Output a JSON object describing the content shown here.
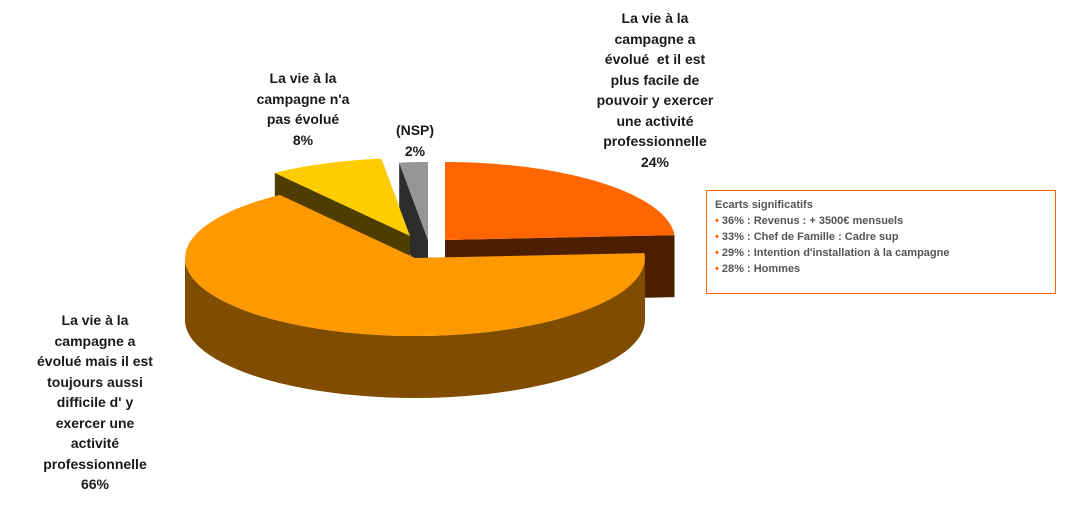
{
  "chart_data": {
    "type": "pie3d",
    "categories": [
      "La vie à la\ncampagne a\névolué  et il est\nplus facile de\npouvoir y exercer\nune activité\nprofessionnelle",
      "La vie à la\ncampagne a\névolué mais il est\ntoujours aussi\ndifficile d' y\nexercer une\nactivité\nprofessionnelle",
      "La vie à la\ncampagne n'a\npas évolué",
      "(NSP)"
    ],
    "values": [
      24,
      66,
      8,
      2
    ],
    "value_labels": [
      "24%",
      "66%",
      "8%",
      "2%"
    ],
    "colors": [
      "#ff6600",
      "#ff9900",
      "#ffcc00",
      "#969696"
    ],
    "annotation": {
      "title": "Ecarts significatifs",
      "items": [
        "36% : Revenus : + 3500€ mensuels",
        "33% : Chef de Famille : Cadre sup",
        "29% : Intention d'installation à la campagne",
        "28% : Hommes"
      ]
    }
  }
}
